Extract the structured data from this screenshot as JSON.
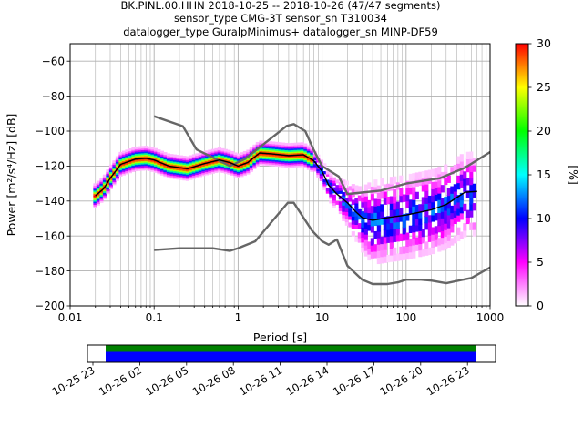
{
  "title": {
    "line1": "BK.PINL.00.HHN   2018-10-25 -- 2018-10-26  (47/47 segments)",
    "line2": "sensor_type CMG-3T sensor_sn T310034",
    "line3": "datalogger_type GuralpMinimus+ datalogger_sn MINP-DF59"
  },
  "chart_data": [
    {
      "type": "heatmap",
      "xlabel": "Period [s]",
      "ylabel": "Power [m²/s⁴/Hz] [dB]",
      "x_scale": "log",
      "xlim": [
        0.01,
        1000
      ],
      "ylim": [
        -200,
        -50
      ],
      "x_ticks": [
        {
          "value": 0.01,
          "label": "0.01"
        },
        {
          "value": 0.1,
          "label": "0.1"
        },
        {
          "value": 1,
          "label": "1"
        },
        {
          "value": 10,
          "label": "10"
        },
        {
          "value": 100,
          "label": "100"
        },
        {
          "value": 1000,
          "label": "1000"
        }
      ],
      "y_ticks": [
        {
          "value": -60,
          "label": "−60"
        },
        {
          "value": -80,
          "label": "−80"
        },
        {
          "value": -100,
          "label": "−100"
        },
        {
          "value": -120,
          "label": "−120"
        },
        {
          "value": -140,
          "label": "−140"
        },
        {
          "value": -160,
          "label": "−160"
        },
        {
          "value": -180,
          "label": "−180"
        },
        {
          "value": -200,
          "label": "−200"
        }
      ],
      "grid": true,
      "colorbar": {
        "label": "[%]",
        "range": [
          0,
          30
        ],
        "ticks": [
          {
            "value": 0,
            "label": "0"
          },
          {
            "value": 5,
            "label": "5"
          },
          {
            "value": 10,
            "label": "10"
          },
          {
            "value": 15,
            "label": "15"
          },
          {
            "value": 20,
            "label": "20"
          },
          {
            "value": 25,
            "label": "25"
          },
          {
            "value": 30,
            "label": "30"
          }
        ],
        "colors": [
          "#ffffff",
          "#ff00ff",
          "#0000ff",
          "#00ffff",
          "#00ff00",
          "#ffff00",
          "#ff0000"
        ]
      },
      "lines": [
        {
          "color": "#666666",
          "points": [
            [
              0.1,
              -91.5
            ],
            [
              0.22,
              -97.2
            ],
            [
              0.32,
              -110.5
            ],
            [
              0.8,
              -120
            ],
            [
              1.2,
              -116
            ],
            [
              3.8,
              -97
            ],
            [
              4.6,
              -96
            ],
            [
              6.3,
              -100
            ],
            [
              7.9,
              -110.5
            ],
            [
              10,
              -120
            ],
            [
              15.8,
              -126
            ],
            [
              20,
              -136
            ],
            [
              50,
              -134
            ],
            [
              100,
              -130
            ],
            [
              250,
              -127
            ],
            [
              500,
              -121
            ],
            [
              1000,
              -112
            ]
          ]
        },
        {
          "color": "#666666",
          "points": [
            [
              0.1,
              -168
            ],
            [
              0.2,
              -167
            ],
            [
              0.5,
              -167
            ],
            [
              0.8,
              -168.5
            ],
            [
              1,
              -167
            ],
            [
              1.6,
              -163
            ],
            [
              3.9,
              -141
            ],
            [
              4.6,
              -141
            ],
            [
              7.6,
              -157
            ],
            [
              10,
              -163
            ],
            [
              12,
              -165
            ],
            [
              15,
              -162
            ],
            [
              20,
              -177
            ],
            [
              30,
              -185
            ],
            [
              40,
              -187.5
            ],
            [
              60,
              -187.5
            ],
            [
              80,
              -186.5
            ],
            [
              100,
              -185
            ],
            [
              150,
              -185
            ],
            [
              200,
              -185.5
            ],
            [
              300,
              -187
            ],
            [
              600,
              -184
            ],
            [
              1000,
              -178
            ]
          ]
        },
        {
          "color": "#000000",
          "points": [
            [
              0.02,
              -137
            ],
            [
              0.025,
              -133
            ],
            [
              0.03,
              -127
            ],
            [
              0.04,
              -119
            ],
            [
              0.06,
              -116
            ],
            [
              0.08,
              -115.5
            ],
            [
              0.1,
              -116.5
            ],
            [
              0.15,
              -120
            ],
            [
              0.25,
              -121.5
            ],
            [
              0.4,
              -118.5
            ],
            [
              0.6,
              -116.5
            ],
            [
              0.8,
              -118
            ],
            [
              1,
              -120
            ],
            [
              1.3,
              -118
            ],
            [
              1.8,
              -112.5
            ],
            [
              2.5,
              -113
            ],
            [
              4,
              -114
            ],
            [
              6,
              -113.5
            ],
            [
              8,
              -117
            ],
            [
              10,
              -123
            ],
            [
              12,
              -131
            ],
            [
              15,
              -136
            ],
            [
              20,
              -141
            ],
            [
              25,
              -146
            ],
            [
              30,
              -149.5
            ],
            [
              40,
              -151
            ],
            [
              60,
              -149.5
            ],
            [
              100,
              -148
            ],
            [
              200,
              -145
            ],
            [
              300,
              -142
            ],
            [
              500,
              -135
            ],
            [
              700,
              -134.5
            ]
          ]
        }
      ],
      "time_axis": {
        "tick_labels": [
          "10-25 23",
          "10-26 02",
          "10-26 05",
          "10-26 08",
          "10-26 11",
          "10-26 14",
          "10-26 17",
          "10-26 20",
          "10-26 23"
        ]
      }
    }
  ]
}
